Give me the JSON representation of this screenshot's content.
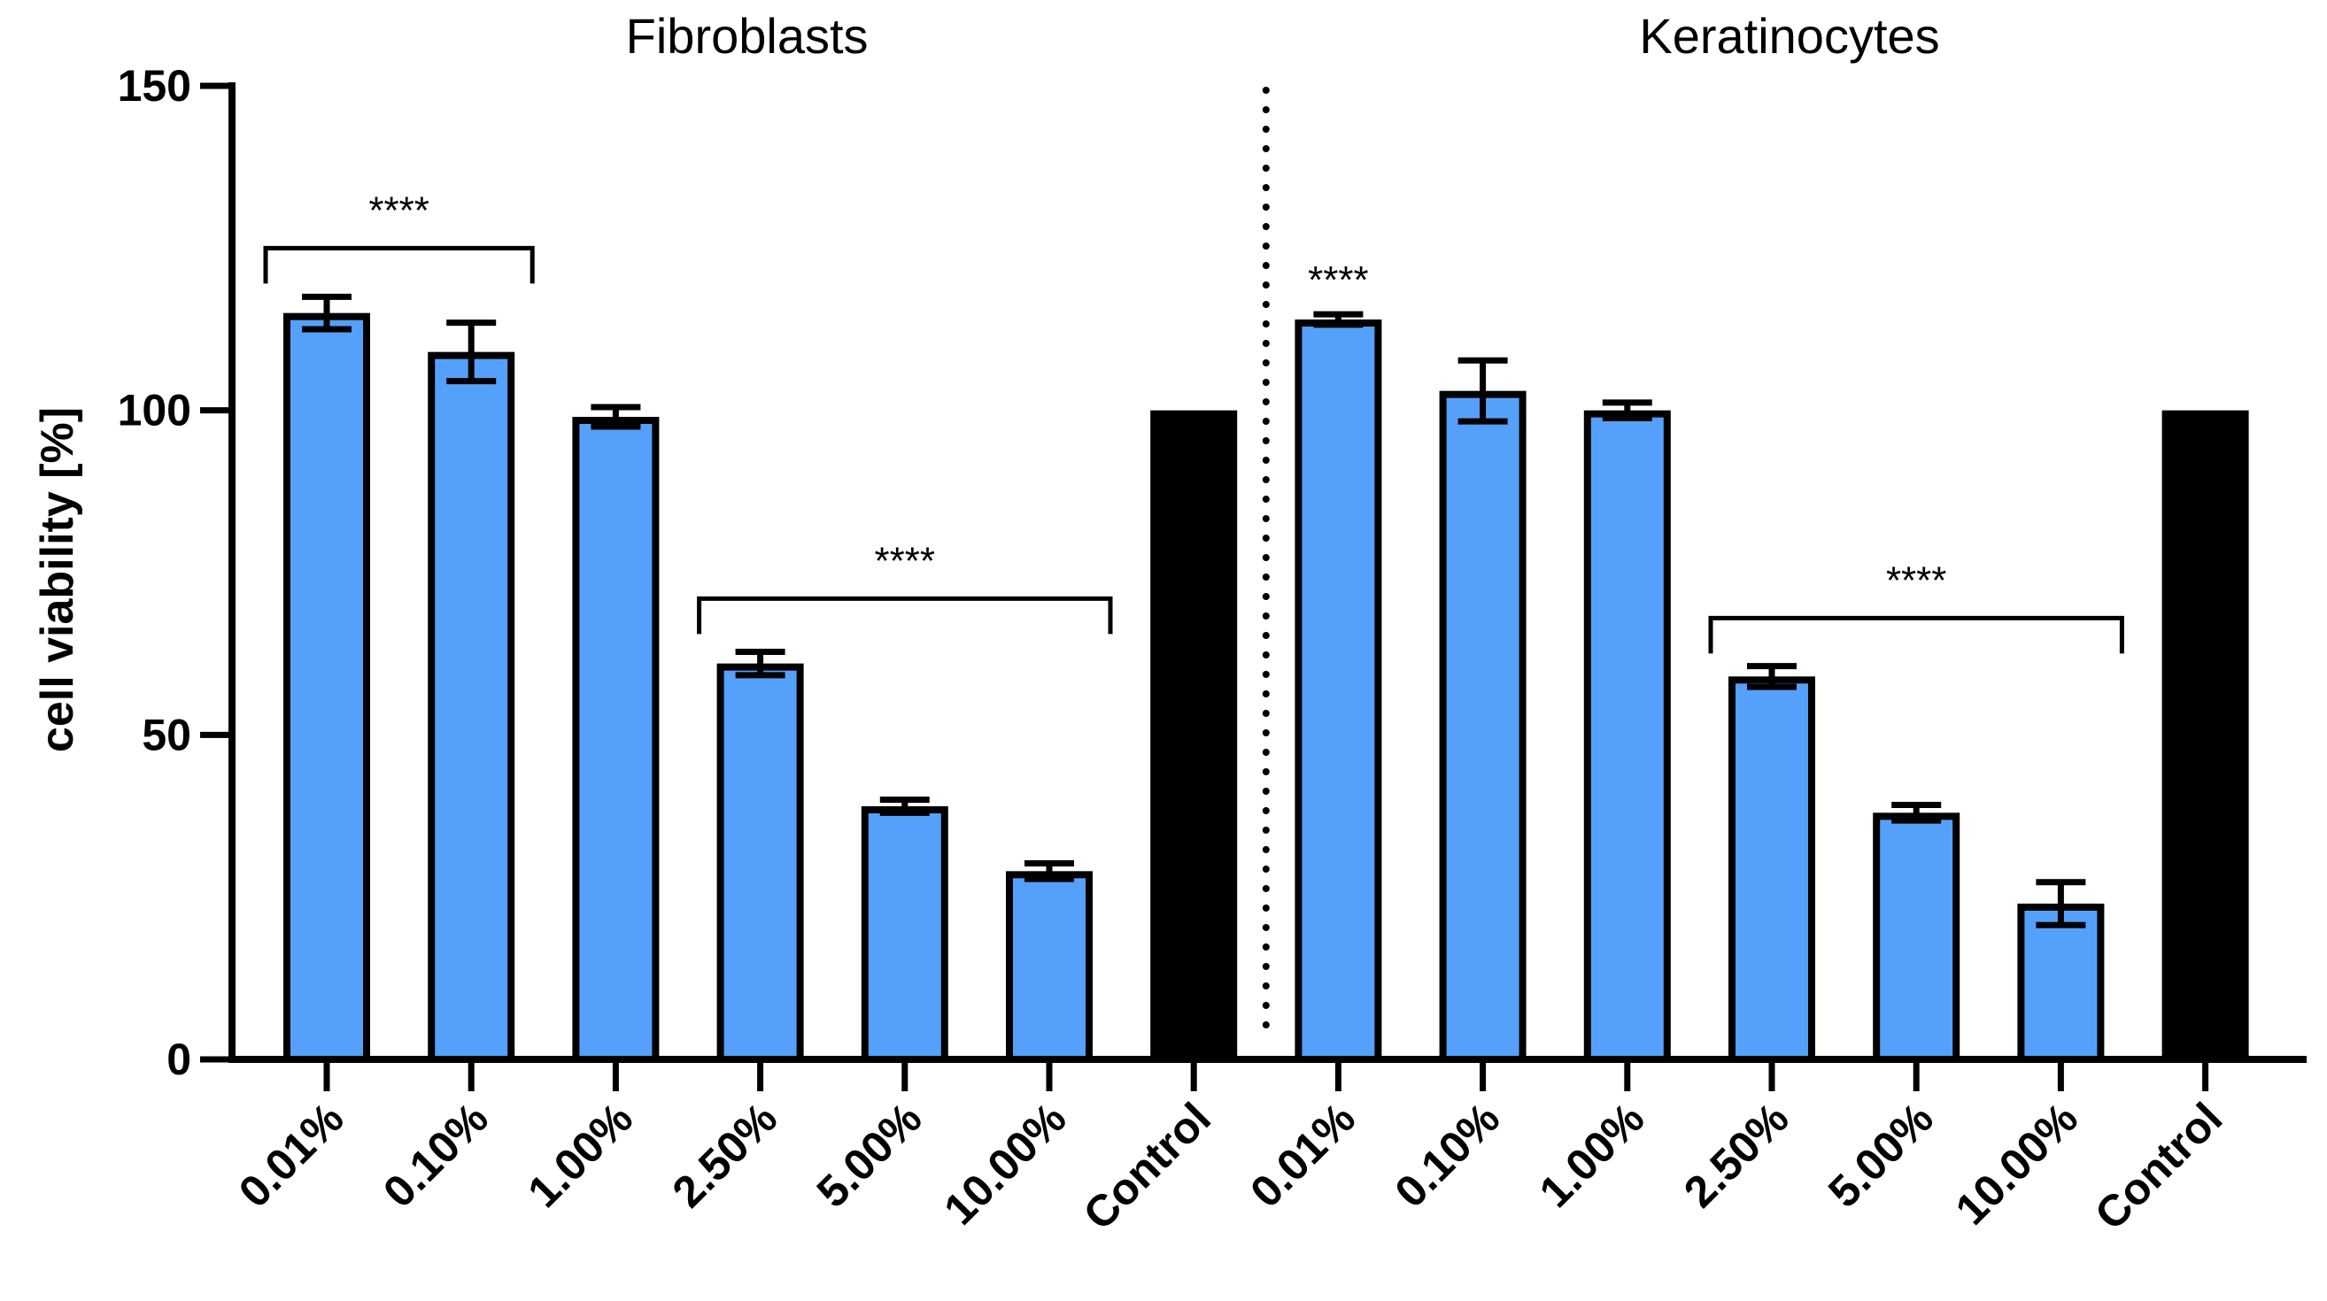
{
  "chart_data": {
    "type": "bar",
    "ylabel": "cell viability [%]",
    "xlabel": "",
    "ylim": [
      0,
      150
    ],
    "y_ticks": [
      "0",
      "50",
      "100",
      "150"
    ],
    "y_tick_values": [
      0,
      50,
      100,
      150
    ],
    "groups": [
      {
        "title": "Fibroblasts",
        "categories": [
          "0.01%",
          "0.10%",
          "1.00%",
          "2.50%",
          "5.00%",
          "10.00%",
          "Control"
        ],
        "values": [
          115,
          109,
          99,
          61,
          39,
          29,
          100
        ],
        "errors": [
          2.5,
          4.5,
          1.5,
          1.8,
          1.0,
          1.2,
          0
        ]
      },
      {
        "title": "Keratinocytes",
        "categories": [
          "0.01%",
          "0.10%",
          "1.00%",
          "2.50%",
          "5.00%",
          "10.00%",
          "Control"
        ],
        "values": [
          114,
          103,
          100,
          59,
          38,
          24,
          100
        ],
        "errors": [
          0.8,
          4.7,
          1.2,
          1.6,
          1.2,
          3.3,
          0
        ]
      }
    ],
    "significance": [
      {
        "group": 0,
        "from": 0,
        "to": 1,
        "label": "****",
        "bracket": true,
        "level": 125
      },
      {
        "group": 0,
        "from": 3,
        "to": 5,
        "label": "****",
        "bracket": true,
        "level": 71
      },
      {
        "group": 1,
        "from": 0,
        "to": 0,
        "label": "****",
        "bracket": false,
        "level": 114
      },
      {
        "group": 1,
        "from": 3,
        "to": 5,
        "label": "****",
        "bracket": true,
        "level": 68
      }
    ],
    "colors": {
      "treatment_bar": "#55A0FA",
      "control_bar": "#000000",
      "outline": "#000000"
    },
    "separator": "dotted line between groups"
  }
}
